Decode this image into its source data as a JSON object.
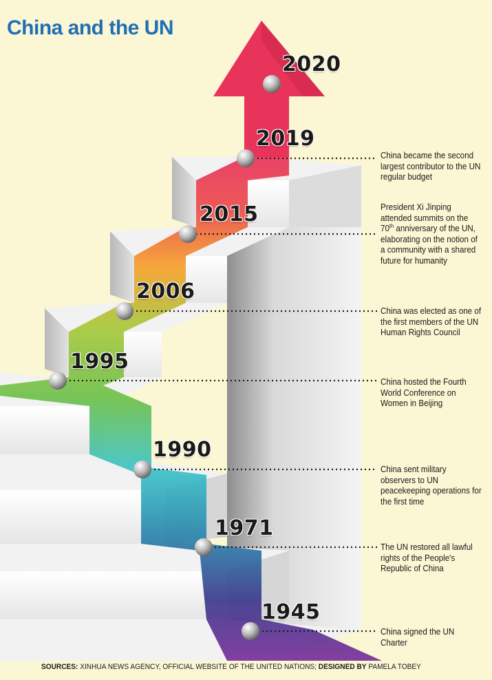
{
  "title": "China and the UN",
  "milestones": [
    {
      "year": "2020",
      "text": ""
    },
    {
      "year": "2019",
      "text": "China became the second largest contributor to the UN regular budget"
    },
    {
      "year": "2015",
      "text_before": "President Xi Jinping attended summits on the 70",
      "text_sup": "th",
      "text_after": " anniversary of the UN, elaborating on the notion of a community with a shared future for humanity"
    },
    {
      "year": "2006",
      "text": "China was elected as one of the first members of the UN Human Rights Council"
    },
    {
      "year": "1995",
      "text": "China hosted the Fourth World Conference on Women in Beijing"
    },
    {
      "year": "1990",
      "text": "China sent military observers to UN peacekeeping operations for the first time"
    },
    {
      "year": "1971",
      "text": "The UN restored all lawful rights of the People's Republic of China"
    },
    {
      "year": "1945",
      "text": "China signed the UN Charter"
    }
  ],
  "footer": {
    "sources_label": "SOURCES:",
    "sources_text": " XINHUA NEWS AGENCY, OFFICIAL WEBSITE OF THE UNITED NATIONS; ",
    "designed_label": "DESIGNED BY",
    "designer": " PAMELA TOBEY"
  },
  "colors": {
    "background": "#fbf6d3",
    "title": "#1f6fb5",
    "arrow": "#e8335a",
    "step_2019": "#e8335a",
    "step_2015": "#f39a2c",
    "step_2006": "#9bc43a",
    "step_1995": "#6cbf45",
    "step_1990": "#3bbdc4",
    "step_1971": "#2a7fa8",
    "step_1945": "#5b3a8f"
  }
}
